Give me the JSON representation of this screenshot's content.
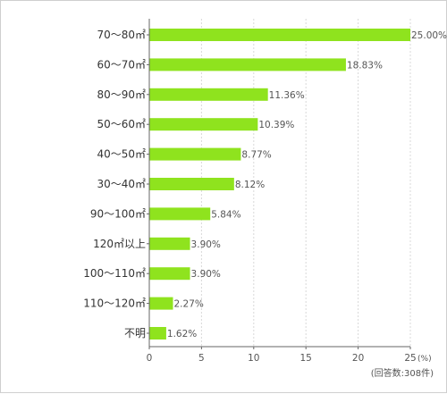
{
  "chart_data": {
    "type": "bar",
    "orientation": "horizontal",
    "categories": [
      "70〜80㎡",
      "60〜70㎡",
      "80〜90㎡",
      "50〜60㎡",
      "40〜50㎡",
      "30〜40㎡",
      "90〜100㎡",
      "120㎡以上",
      "100〜110㎡",
      "110〜120㎡",
      "不明"
    ],
    "values": [
      25.0,
      18.83,
      11.36,
      10.39,
      8.77,
      8.12,
      5.84,
      3.9,
      3.9,
      2.27,
      1.62
    ],
    "value_labels": [
      "25.00%",
      "18.83%",
      "11.36%",
      "10.39%",
      "8.77%",
      "8.12%",
      "5.84%",
      "3.90%",
      "3.90%",
      "2.27%",
      "1.62%"
    ],
    "xlim": [
      0,
      25
    ],
    "xticks": [
      0,
      5,
      10,
      15,
      20,
      25
    ],
    "x_unit": "(%)",
    "note": "(回答数:308件)",
    "grid": true,
    "colors": {
      "bar": "#8fe31e",
      "axis": "#666666",
      "grid": "#d8d8d8"
    }
  }
}
